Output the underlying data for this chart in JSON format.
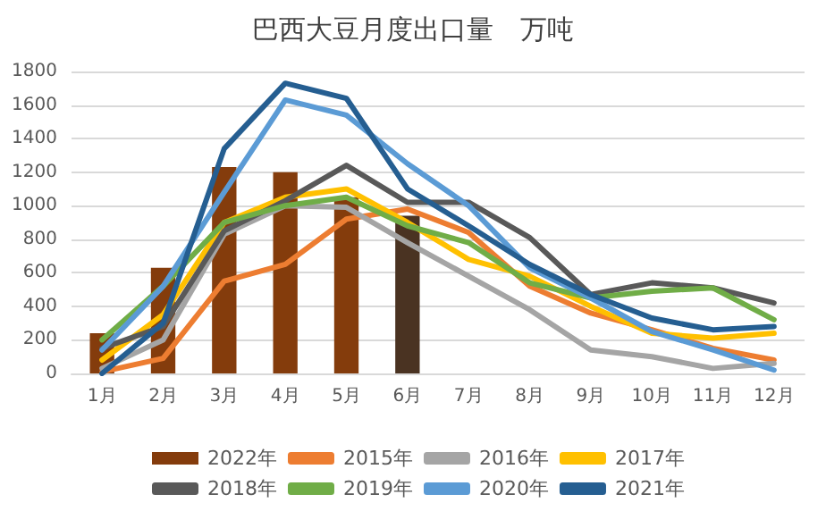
{
  "chart_data": {
    "type": "line",
    "title": "巴西大豆月度出口量　万吨",
    "categories": [
      "1月",
      "2月",
      "3月",
      "4月",
      "5月",
      "6月",
      "7月",
      "8月",
      "9月",
      "10月",
      "11月",
      "12月"
    ],
    "ylim": [
      0,
      1800
    ],
    "yticks": [
      0,
      200,
      400,
      600,
      800,
      1000,
      1200,
      1400,
      1600,
      1800
    ],
    "grid": "y",
    "legend": "bottom",
    "marker": "none",
    "line_style": "solid",
    "series": [
      {
        "name": "2022年",
        "type": "bar",
        "color": "#843c0c",
        "colors": [
          "#843c0c",
          "#843c0c",
          "#843c0c",
          "#843c0c",
          "#843c0c",
          "#4a3322",
          "#843c0c",
          "#843c0c",
          "#843c0c",
          "#843c0c",
          "#843c0c",
          "#843c0c"
        ],
        "values": [
          240,
          630,
          1230,
          1200,
          1050,
          940,
          null,
          null,
          null,
          null,
          null,
          null
        ]
      },
      {
        "name": "2015年",
        "color": "#ed7d31",
        "values": [
          10,
          90,
          550,
          650,
          920,
          980,
          840,
          520,
          360,
          260,
          150,
          80
        ]
      },
      {
        "name": "2016年",
        "color": "#a5a5a5",
        "values": [
          30,
          200,
          830,
          1000,
          990,
          780,
          580,
          380,
          140,
          100,
          30,
          60
        ]
      },
      {
        "name": "2017年",
        "color": "#ffc000",
        "values": [
          80,
          350,
          900,
          1050,
          1100,
          900,
          680,
          580,
          400,
          240,
          210,
          240
        ]
      },
      {
        "name": "2018年",
        "color": "#595959",
        "values": [
          150,
          280,
          850,
          1030,
          1240,
          1020,
          1020,
          810,
          470,
          540,
          510,
          420
        ]
      },
      {
        "name": "2019年",
        "color": "#70ad47",
        "values": [
          200,
          520,
          900,
          1000,
          1050,
          880,
          780,
          540,
          450,
          490,
          510,
          320
        ]
      },
      {
        "name": "2020年",
        "color": "#5b9bd5",
        "values": [
          140,
          520,
          1080,
          1630,
          1540,
          1250,
          1000,
          630,
          450,
          250,
          140,
          20
        ]
      },
      {
        "name": "2021年",
        "color": "#255e91",
        "values": [
          0,
          300,
          1340,
          1730,
          1640,
          1100,
          880,
          650,
          470,
          330,
          260,
          280
        ]
      }
    ]
  }
}
